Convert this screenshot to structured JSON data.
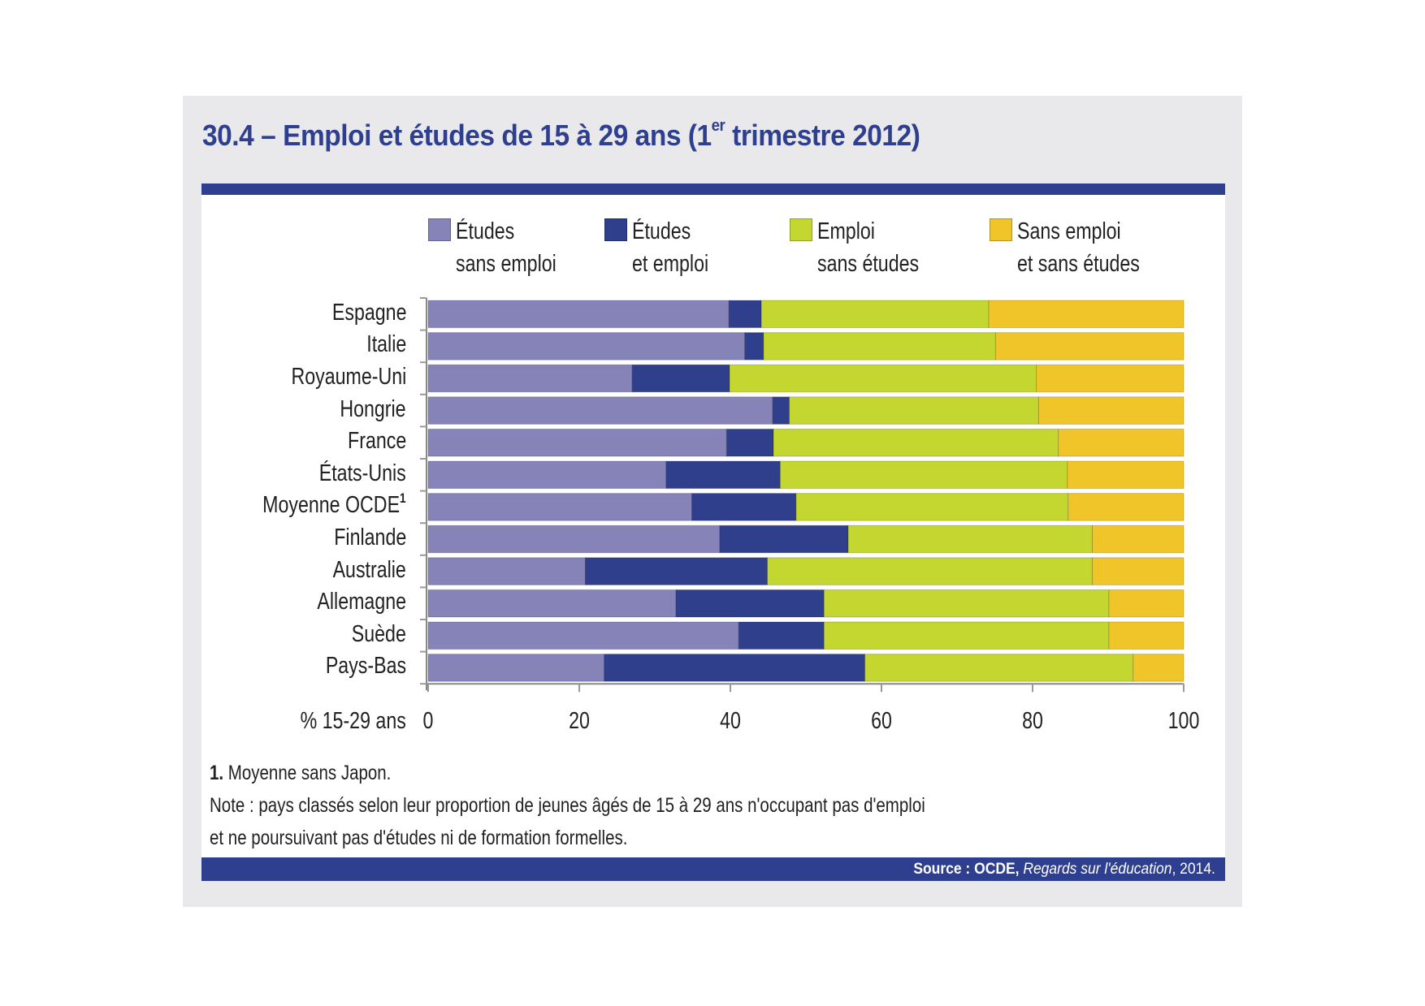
{
  "title": {
    "prefix": "30.4 – Emploi et études de 15 à 29 ans (1",
    "superscript": "er",
    "suffix": " trimestre 2012)"
  },
  "colors": {
    "brand": "#2e3f8f",
    "panel_bg": "#e9e9eb"
  },
  "chart_data": {
    "type": "bar",
    "orientation": "horizontal",
    "stacked": true,
    "title": "30.4 – Emploi et études de 15 à 29 ans (1er trimestre 2012)",
    "xlabel": "% 15-29 ans",
    "ylabel": "",
    "xlim": [
      0,
      100
    ],
    "xticks": [
      "0",
      "20",
      "40",
      "60",
      "80",
      "100"
    ],
    "grid": false,
    "legend_position": "top",
    "categories": [
      "Espagne",
      "Italie",
      "Royaume-Uni",
      "Hongrie",
      "France",
      "États-Unis",
      "Moyenne OCDE",
      "Finlande",
      "Australie",
      "Allemagne",
      "Suède",
      "Pays-Bas"
    ],
    "category_footnotes": {
      "Moyenne OCDE": "1"
    },
    "series": [
      {
        "name": "Études sans emploi",
        "legend_lines": [
          "Études",
          "sans emploi"
        ],
        "color": "#8583b8",
        "values": [
          39.8,
          41.9,
          27.0,
          45.6,
          39.5,
          31.5,
          34.9,
          38.6,
          20.8,
          32.8,
          41.1,
          23.3
        ]
      },
      {
        "name": "Études et emploi",
        "legend_lines": [
          "Études",
          "et emploi"
        ],
        "color": "#2f3f8c",
        "values": [
          4.3,
          2.5,
          12.9,
          2.2,
          6.2,
          15.1,
          13.8,
          17.0,
          24.1,
          19.6,
          11.3,
          34.5
        ]
      },
      {
        "name": "Emploi sans études",
        "legend_lines": [
          "Emploi",
          "sans études"
        ],
        "color": "#c4d630",
        "values": [
          30.1,
          30.7,
          40.6,
          33.0,
          37.7,
          38.0,
          36.0,
          32.3,
          43.0,
          37.7,
          37.7,
          35.5
        ]
      },
      {
        "name": "Sans emploi et sans études",
        "legend_lines": [
          "Sans emploi",
          "et sans études"
        ],
        "color": "#efc52a",
        "values": [
          25.8,
          24.9,
          19.5,
          19.2,
          16.6,
          15.4,
          15.3,
          12.1,
          12.1,
          9.9,
          9.9,
          6.7
        ]
      }
    ]
  },
  "notes": {
    "footnote_number": "1.",
    "footnote_text": " Moyenne sans Japon.",
    "note_line1": "Note : pays classés selon leur proportion de jeunes âgés de 15 à 29 ans n'occupant pas d'emploi",
    "note_line2": "et ne poursuivant pas d'études ni de formation formelles."
  },
  "source": {
    "label": "Source : OCDE,",
    "publication": "Regards sur l'éducation",
    "year": ", 2014."
  }
}
